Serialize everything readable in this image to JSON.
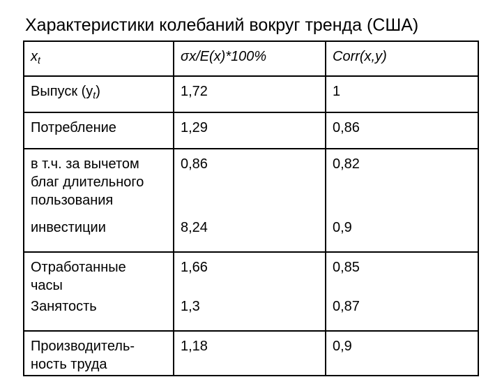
{
  "title": "Характеристики колебаний вокруг тренда (США)",
  "table": {
    "header": {
      "col1_base": "x",
      "col1_sub": "t",
      "col2_sigma": "σ",
      "col2_rest": "x/E(x)*100%",
      "col3": "Corr(x,y)"
    },
    "rows": [
      {
        "label_lines": [
          "Выпуск (y",
          "t",
          ")"
        ],
        "value": "1,72",
        "corr": "1"
      },
      {
        "label_lines": [
          "Потребление"
        ],
        "value": "1,29",
        "corr": "0,86"
      },
      {
        "label_lines": [
          "в т.ч. за вычетом",
          "благ длительного",
          "пользования"
        ],
        "value": "0,86",
        "corr": "0,82"
      },
      {
        "label_lines": [
          "инвестиции"
        ],
        "value": "8,24",
        "corr": "0,9"
      },
      {
        "label_lines": [
          "Отработанные",
          "часы"
        ],
        "value": "1,66",
        "corr": "0,85"
      },
      {
        "label_lines": [
          "Занятость"
        ],
        "value": "1,3",
        "corr": "0,87"
      },
      {
        "label_lines": [
          "Производитель-",
          "ность труда"
        ],
        "value": "1,18",
        "corr": "0,9"
      }
    ]
  }
}
